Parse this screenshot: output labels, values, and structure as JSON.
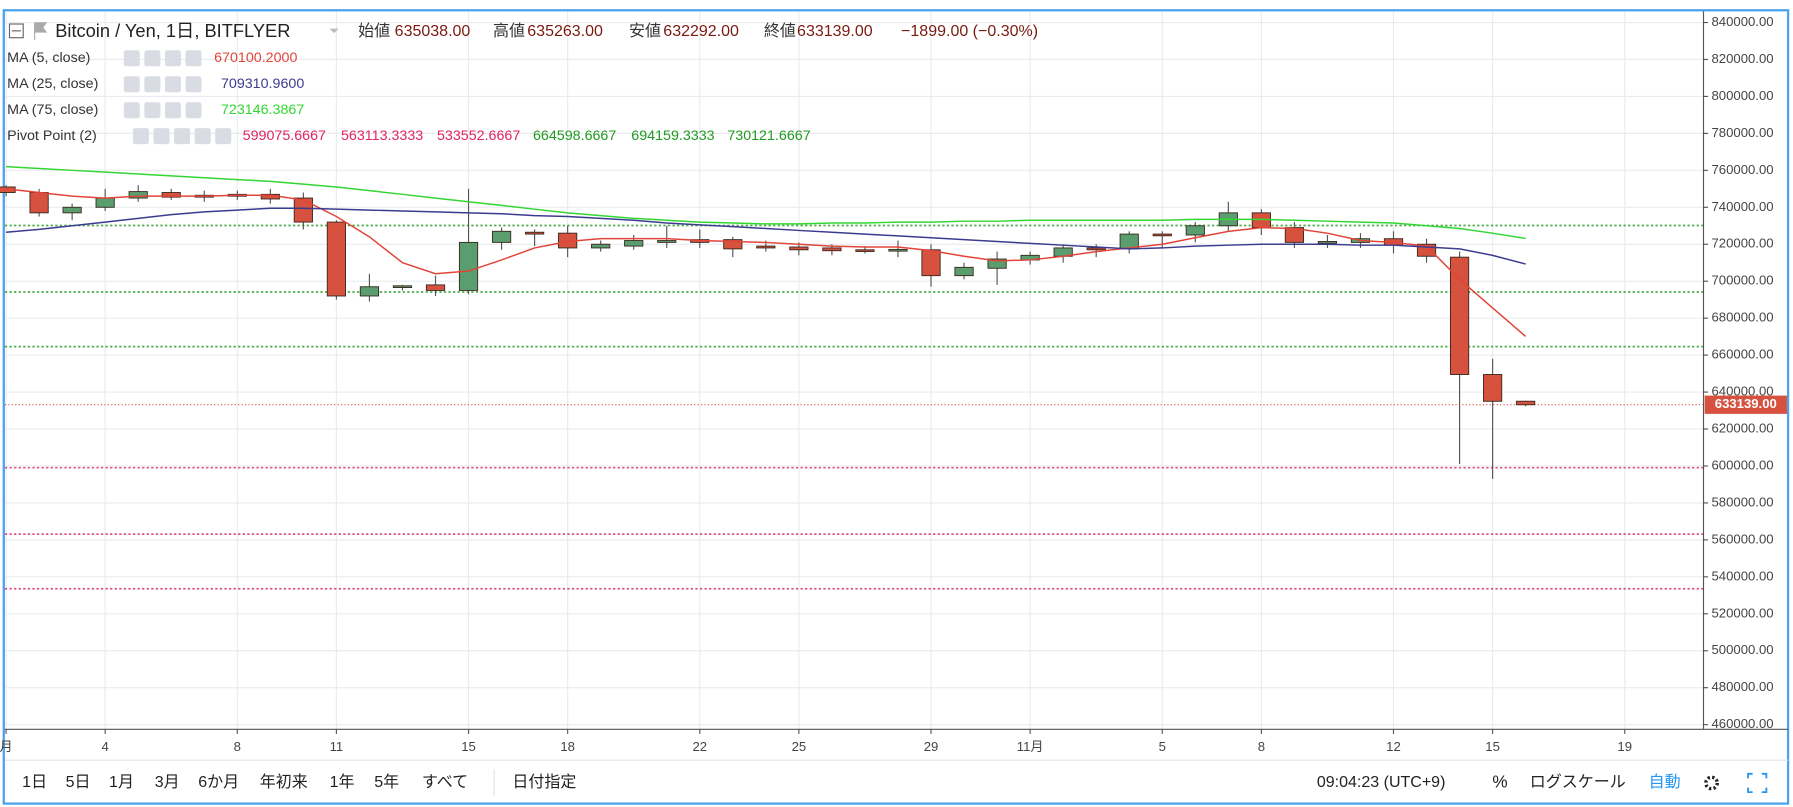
{
  "header": {
    "symbol": "Bitcoin / Yen, 1日, BITFLYER",
    "open_label": "始値",
    "open": "635038.00",
    "high_label": "高値",
    "high": "635263.00",
    "low_label": "安値",
    "low": "632292.00",
    "close_label": "終値",
    "close": "633139.00",
    "change": "−1899.00 (−0.30%)"
  },
  "chart_data": {
    "type": "candlestick",
    "categories": [
      "月",
      null,
      null,
      "4",
      null,
      null,
      null,
      "8",
      null,
      null,
      "11",
      null,
      null,
      null,
      "15",
      null,
      null,
      "18",
      null,
      null,
      null,
      "22",
      null,
      null,
      "25",
      null,
      null,
      null,
      "29",
      null,
      null,
      "11月",
      null,
      null,
      null,
      "5",
      null,
      null,
      "8",
      null,
      null,
      null,
      "12",
      null,
      null,
      "15",
      null,
      null,
      null,
      "19",
      null,
      null
    ],
    "open": [
      751000,
      748000,
      737000,
      740000,
      745000,
      748000,
      746500,
      747000,
      747000,
      745000,
      732000,
      692000,
      697000,
      698000,
      695000,
      721000,
      726500,
      726000,
      718000,
      719000,
      721000,
      722500,
      722500,
      719000,
      718500,
      718000,
      717000,
      716500,
      717000,
      703000,
      707000,
      711500,
      713500,
      718000,
      717500,
      725500,
      725000,
      730000,
      737000,
      729000,
      720500,
      721000,
      723000,
      720000,
      713000,
      649500,
      635038,
      null,
      null,
      null,
      null,
      null
    ],
    "high": [
      752000,
      750000,
      742000,
      750000,
      752000,
      750000,
      749000,
      749000,
      750000,
      748000,
      733000,
      704000,
      698000,
      703000,
      750000,
      729000,
      728000,
      730000,
      722000,
      725000,
      730000,
      728000,
      724000,
      722000,
      721000,
      720000,
      719000,
      722000,
      720000,
      710000,
      716000,
      716000,
      720000,
      720000,
      727000,
      727000,
      732000,
      743000,
      739000,
      732000,
      725000,
      726000,
      727000,
      723000,
      716000,
      658000,
      635263,
      null,
      null,
      null,
      null,
      null
    ],
    "low": [
      746000,
      735000,
      733000,
      738000,
      743000,
      744000,
      743000,
      744000,
      742000,
      728000,
      690000,
      689000,
      695000,
      692000,
      693000,
      717000,
      719000,
      713000,
      716000,
      717000,
      718000,
      718000,
      713000,
      716000,
      714000,
      714000,
      715000,
      713000,
      697000,
      701000,
      698000,
      709000,
      710000,
      713000,
      715000,
      718000,
      721000,
      727000,
      725000,
      718000,
      718000,
      718000,
      715000,
      710000,
      601000,
      593000,
      632292,
      null,
      null,
      null,
      null,
      null
    ],
    "close": [
      748000,
      737000,
      740000,
      745000,
      748500,
      745500,
      745500,
      746000,
      744500,
      732000,
      692000,
      697000,
      697500,
      695000,
      721000,
      727000,
      725500,
      718000,
      720000,
      722000,
      722000,
      721000,
      717500,
      718000,
      717000,
      716500,
      716800,
      717200,
      703000,
      707500,
      712000,
      714000,
      718000,
      717000,
      725500,
      725000,
      730000,
      737000,
      729000,
      721000,
      721500,
      723000,
      719500,
      713500,
      649500,
      635000,
      633139,
      null,
      null,
      null,
      null,
      null
    ],
    "up_color": "#5a9e6f",
    "down_color": "#d6513e",
    "series": [
      {
        "name": "MA (5, close)",
        "color": "#e2443a",
        "value_label": "670100.2000",
        "values": [
          750000,
          748000,
          746000,
          745000,
          746000,
          746000,
          746000,
          746500,
          746500,
          744000,
          735000,
          724000,
          710000,
          704000,
          705500,
          711500,
          718000,
          721500,
          723000,
          723000,
          723000,
          722000,
          721500,
          721000,
          720000,
          719000,
          718500,
          718500,
          716500,
          713500,
          711000,
          711500,
          713500,
          716000,
          718000,
          720000,
          723500,
          727000,
          729000,
          728500,
          726000,
          722000,
          721000,
          719000,
          701000,
          685500,
          670100.2,
          null,
          null,
          null,
          null,
          null
        ]
      },
      {
        "name": "MA (25, close)",
        "color": "#3c3c8f",
        "value_label": "709310.9600",
        "values": [
          726500,
          728000,
          730000,
          732000,
          734000,
          736000,
          737500,
          738500,
          739500,
          739500,
          739000,
          738500,
          738000,
          737500,
          737000,
          736500,
          735500,
          735000,
          734000,
          733000,
          731500,
          730500,
          729500,
          728500,
          727500,
          726500,
          725500,
          724500,
          723500,
          722500,
          721500,
          720500,
          719500,
          718500,
          717500,
          718000,
          719000,
          719500,
          720000,
          720000,
          720000,
          719500,
          719500,
          718500,
          717500,
          714000,
          709310.96,
          null,
          null,
          null,
          null,
          null
        ]
      },
      {
        "name": "MA (75, close)",
        "color": "#33d633",
        "value_label": "723146.3867",
        "values": [
          762000,
          761000,
          760000,
          759000,
          758000,
          757000,
          756000,
          755000,
          754000,
          752500,
          751000,
          749000,
          747000,
          745000,
          743000,
          741000,
          739000,
          737000,
          735500,
          734000,
          733000,
          732000,
          731500,
          731000,
          731000,
          731500,
          731500,
          732000,
          732000,
          732500,
          732500,
          733000,
          733000,
          733000,
          733000,
          733000,
          733500,
          733500,
          733500,
          733000,
          732500,
          732000,
          731500,
          730000,
          728500,
          726000,
          723146.3867,
          null,
          null,
          null,
          null,
          null
        ]
      }
    ],
    "pivot": {
      "name": "Pivot Point (2)",
      "values": [
        599075.6667,
        563113.3333,
        533552.6667,
        664598.6667,
        694159.3333,
        730121.6667
      ],
      "colors": [
        "#e0245e",
        "#e0245e",
        "#e0245e",
        "#1f9a1f",
        "#1f9a1f",
        "#1f9a1f"
      ]
    },
    "last_price_label": "633139.00",
    "ylim": [
      457500,
      846000
    ],
    "yticks": [
      {
        "value": 840000,
        "label": "840000.00"
      },
      {
        "value": 820000,
        "label": "820000.00"
      },
      {
        "value": 800000,
        "label": "800000.00"
      },
      {
        "value": 780000,
        "label": "780000.00"
      },
      {
        "value": 760000,
        "label": "760000.00"
      },
      {
        "value": 740000,
        "label": "740000.00"
      },
      {
        "value": 720000,
        "label": "720000.00"
      },
      {
        "value": 700000,
        "label": "700000.00"
      },
      {
        "value": 680000,
        "label": "680000.00"
      },
      {
        "value": 660000,
        "label": "660000.00"
      },
      {
        "value": 640000,
        "label": "640000.00"
      },
      {
        "value": 620000,
        "label": "620000.00"
      },
      {
        "value": 600000,
        "label": "600000.00"
      },
      {
        "value": 580000,
        "label": "580000.00"
      },
      {
        "value": 560000,
        "label": "560000.00"
      },
      {
        "value": 540000,
        "label": "540000.00"
      },
      {
        "value": 520000,
        "label": "520000.00"
      },
      {
        "value": 500000,
        "label": "500000.00"
      },
      {
        "value": 480000,
        "label": "480000.00"
      },
      {
        "value": 460000,
        "label": "460000.00"
      }
    ],
    "grid": true
  },
  "toolbar": {
    "ranges": [
      "1日",
      "5日",
      "1月",
      "3月",
      "6か月",
      "年初来",
      "1年",
      "5年",
      "すべて"
    ],
    "date": "日付指定",
    "time": "09:04:23 (UTC+9)",
    "percent": "%",
    "log": "ログスケール",
    "auto": "自動"
  }
}
